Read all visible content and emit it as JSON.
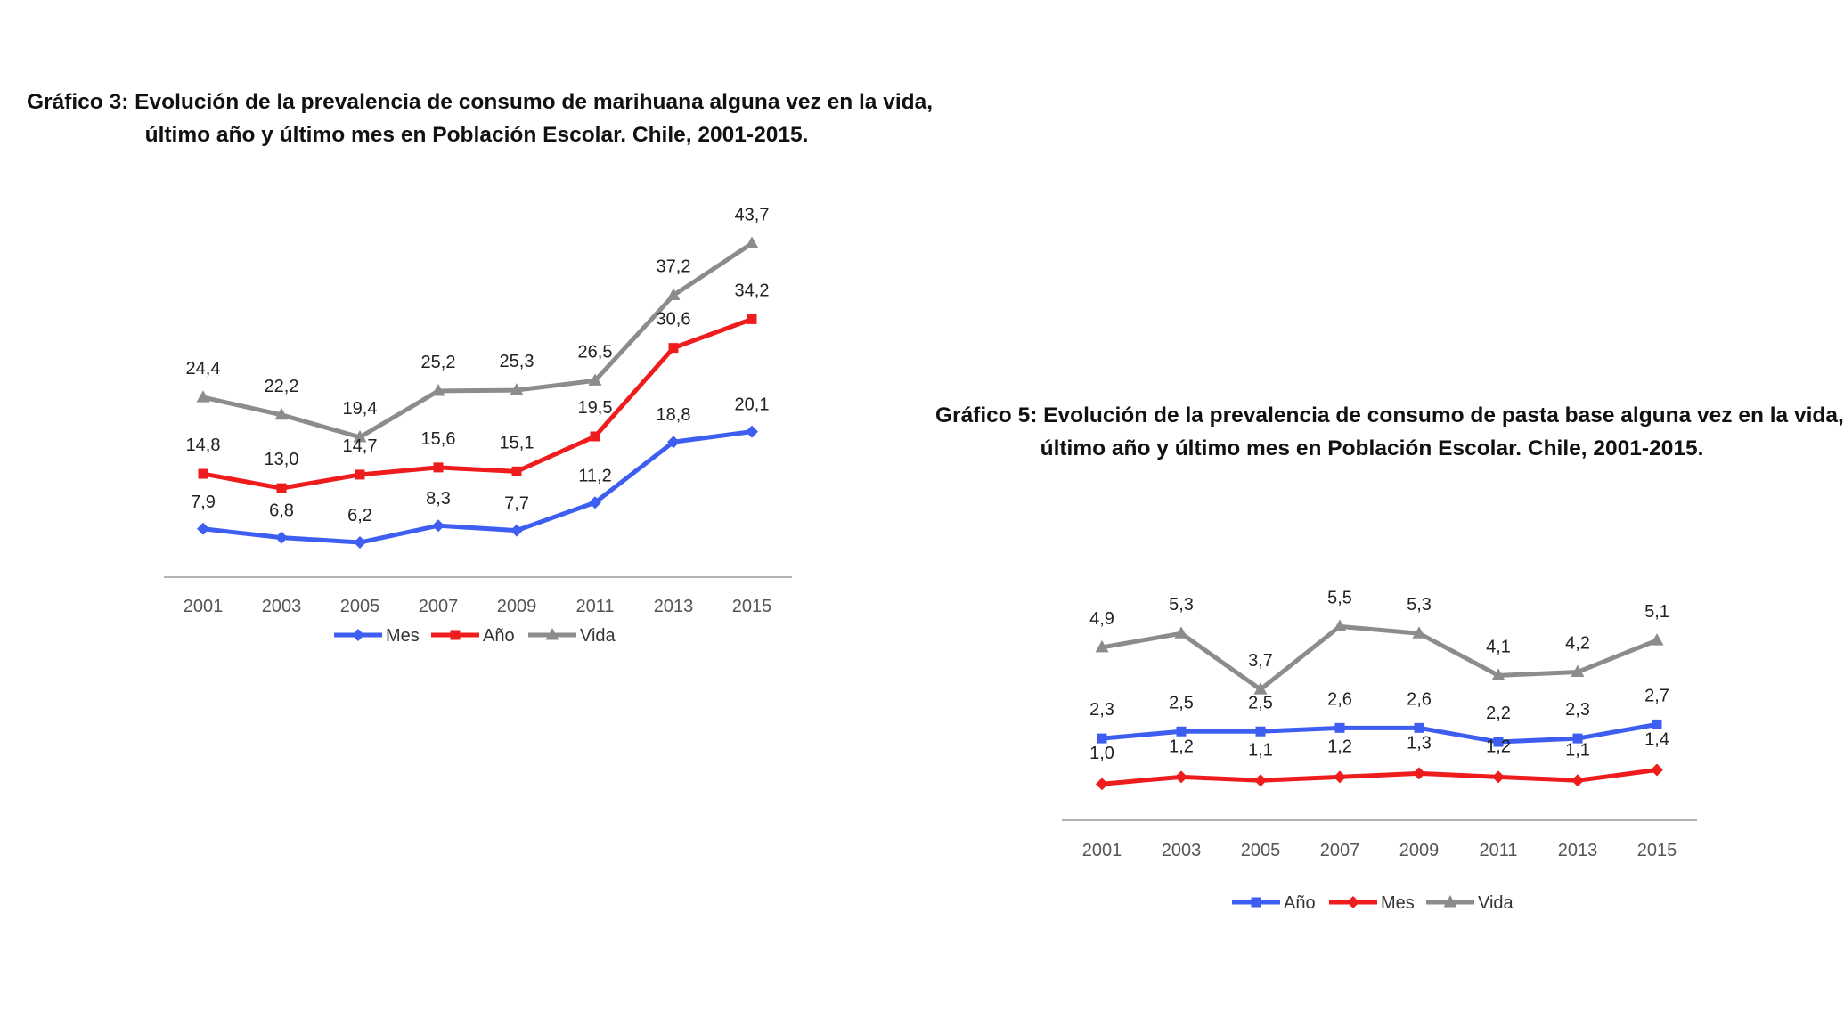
{
  "chart_data": [
    {
      "type": "line",
      "title_line1": "Gráfico 3: Evolución de la prevalencia de consumo de marihuana alguna vez en la vida,",
      "title_line2": "último año y último mes en Población Escolar. Chile, 2001-2015.",
      "categories": [
        "2001",
        "2003",
        "2005",
        "2007",
        "2009",
        "2011",
        "2013",
        "2015"
      ],
      "ylim": [
        0,
        45
      ],
      "legend_position": "bottom",
      "series": [
        {
          "name": "Mes",
          "color": "#3d5ef0",
          "marker": "diamond",
          "values": [
            7.9,
            6.8,
            6.2,
            8.3,
            7.7,
            11.2,
            18.8,
            20.1
          ],
          "labels": [
            "7,9",
            "6,8",
            "6,2",
            "8,3",
            "7,7",
            "11,2",
            "18,8",
            "20,1"
          ]
        },
        {
          "name": "Año",
          "color": "#ee1c1c",
          "marker": "square",
          "values": [
            14.8,
            13.0,
            14.7,
            15.6,
            15.1,
            19.5,
            30.6,
            34.2
          ],
          "labels": [
            "14,8",
            "13,0",
            "14,7",
            "15,6",
            "15,1",
            "19,5",
            "30,6",
            "34,2"
          ]
        },
        {
          "name": "Vida",
          "color": "#8c8c8c",
          "marker": "triangle",
          "values": [
            24.4,
            22.2,
            19.4,
            25.2,
            25.3,
            26.5,
            37.2,
            43.7
          ],
          "labels": [
            "24,4",
            "22,2",
            "19,4",
            "25,2",
            "25,3",
            "26,5",
            "37,2",
            "43,7"
          ]
        }
      ]
    },
    {
      "type": "line",
      "title_line1": "Gráfico 5: Evolución de la prevalencia de consumo de pasta base alguna vez en la vida,",
      "title_line2": "último año y último mes en Población Escolar. Chile, 2001-2015.",
      "categories": [
        "2001",
        "2003",
        "2005",
        "2007",
        "2009",
        "2011",
        "2013",
        "2015"
      ],
      "ylim": [
        0,
        6
      ],
      "legend_position": "bottom",
      "series": [
        {
          "name": "Año",
          "color": "#3d5ef0",
          "marker": "square",
          "values": [
            2.3,
            2.5,
            2.5,
            2.6,
            2.6,
            2.2,
            2.3,
            2.7
          ],
          "labels": [
            "2,3",
            "2,5",
            "2,5",
            "2,6",
            "2,6",
            "2,2",
            "2,3",
            "2,7"
          ]
        },
        {
          "name": "Mes",
          "color": "#ee1c1c",
          "marker": "diamond",
          "values": [
            1.0,
            1.2,
            1.1,
            1.2,
            1.3,
            1.2,
            1.1,
            1.4
          ],
          "labels": [
            "1,0",
            "1,2",
            "1,1",
            "1,2",
            "1,3",
            "1,2",
            "1,1",
            "1,4"
          ]
        },
        {
          "name": "Vida",
          "color": "#8c8c8c",
          "marker": "triangle",
          "values": [
            4.9,
            5.3,
            3.7,
            5.5,
            5.3,
            4.1,
            4.2,
            5.1
          ],
          "labels": [
            "4,9",
            "5,3",
            "3,7",
            "5,5",
            "5,3",
            "4,1",
            "4,2",
            "5,1"
          ]
        }
      ]
    }
  ]
}
